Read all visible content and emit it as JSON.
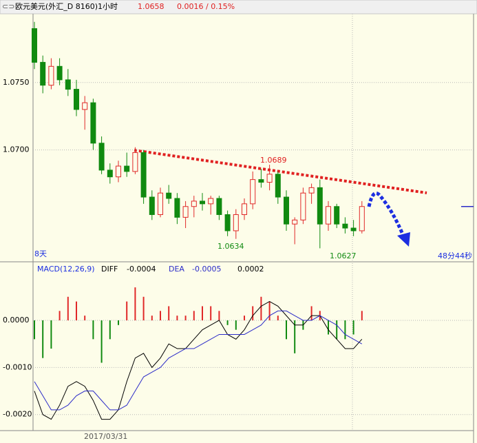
{
  "header": {
    "title": "欧元美元(外汇_D 8160)1小时",
    "price": "1.0658",
    "change": "0.0016 / 0.15%"
  },
  "chart_data": [
    {
      "type": "candlestick",
      "up_color": "#e02828",
      "down_color": "#108a10",
      "open": [
        1.079,
        1.0765,
        1.0748,
        1.0762,
        1.0752,
        1.0745,
        1.073,
        1.0735,
        1.0705,
        1.0685,
        1.068,
        1.0688,
        1.0684,
        1.0698,
        1.0665,
        1.0652,
        1.0668,
        1.0664,
        1.065,
        1.0658,
        1.0662,
        1.066,
        1.0664,
        1.0652,
        1.064,
        1.0652,
        1.066,
        1.0678,
        1.0676,
        1.0682,
        1.0665,
        1.0645,
        1.0648,
        1.0668,
        1.0672,
        1.0645,
        1.0658,
        1.0645,
        1.0642,
        1.064
      ],
      "high": [
        1.0795,
        1.077,
        1.0768,
        1.0768,
        1.076,
        1.0752,
        1.074,
        1.0738,
        1.071,
        1.069,
        1.0692,
        1.0698,
        1.0702,
        1.07,
        1.067,
        1.0672,
        1.0674,
        1.0668,
        1.0662,
        1.0666,
        1.0668,
        1.0666,
        1.0666,
        1.0655,
        1.0656,
        1.0664,
        1.0684,
        1.0686,
        1.0689,
        1.0684,
        1.067,
        1.065,
        1.0672,
        1.0675,
        1.0678,
        1.0662,
        1.066,
        1.065,
        1.0648,
        1.0662
      ],
      "low": [
        1.076,
        1.0742,
        1.0745,
        1.0748,
        1.074,
        1.0725,
        1.0715,
        1.07,
        1.0682,
        1.0675,
        1.0676,
        1.068,
        1.0682,
        1.066,
        1.0648,
        1.065,
        1.066,
        1.0645,
        1.0642,
        1.065,
        1.0655,
        1.0652,
        1.0648,
        1.0636,
        1.0634,
        1.0648,
        1.0656,
        1.0672,
        1.067,
        1.066,
        1.064,
        1.063,
        1.0645,
        1.066,
        1.0627,
        1.064,
        1.0642,
        1.0638,
        1.0636,
        1.0638
      ],
      "close": [
        1.0765,
        1.0748,
        1.0762,
        1.0752,
        1.0745,
        1.073,
        1.0735,
        1.0705,
        1.0685,
        1.068,
        1.0688,
        1.0684,
        1.0698,
        1.0665,
        1.0652,
        1.0668,
        1.0664,
        1.065,
        1.0658,
        1.0662,
        1.066,
        1.0664,
        1.0652,
        1.064,
        1.0652,
        1.066,
        1.0678,
        1.0676,
        1.0682,
        1.0665,
        1.0645,
        1.0648,
        1.0668,
        1.0672,
        1.0645,
        1.0658,
        1.0645,
        1.0642,
        1.064,
        1.0658
      ],
      "ylim": [
        1.0618,
        1.0801
      ],
      "yticks": [
        {
          "value": 1.075,
          "label": "1.0750"
        },
        {
          "value": 1.07,
          "label": "1.0700"
        }
      ],
      "grid": true,
      "annotations": [
        "1.0689",
        "1.0634",
        "1.0627",
        "8天",
        "48分44秒"
      ]
    },
    {
      "type": "macd",
      "title": "MACD(12,26,9)",
      "series": [
        {
          "name": "DIFF",
          "color": "#000000",
          "current": -0.0004,
          "values": [
            -0.0015,
            -0.002,
            -0.0021,
            -0.0018,
            -0.0014,
            -0.0013,
            -0.0014,
            -0.0017,
            -0.0021,
            -0.0021,
            -0.0019,
            -0.0013,
            -0.0008,
            -0.0007,
            -0.001,
            -0.0008,
            -0.0005,
            -0.0006,
            -0.0006,
            -0.0004,
            -0.0002,
            -0.0001,
            0,
            -0.0003,
            -0.0004,
            -0.0002,
            0.0001,
            0.0003,
            0.0004,
            0.0003,
            0.0001,
            -0.0001,
            -0.0001,
            0.0001,
            0.0001,
            -0.0002,
            -0.0004,
            -0.0006,
            -0.0006,
            -0.0004
          ]
        },
        {
          "name": "DEA",
          "color": "#2b2bc8",
          "current": -0.0005,
          "values": [
            -0.0013,
            -0.0016,
            -0.0019,
            -0.0019,
            -0.0018,
            -0.0016,
            -0.0015,
            -0.0015,
            -0.0017,
            -0.0019,
            -0.0019,
            -0.0018,
            -0.0015,
            -0.0012,
            -0.0011,
            -0.001,
            -0.0008,
            -0.0007,
            -0.0006,
            -0.0006,
            -0.0005,
            -0.0004,
            -0.0003,
            -0.0003,
            -0.0003,
            -0.0003,
            -0.0002,
            -0.0001,
            0.0001,
            0.0002,
            0.0002,
            0.0001,
            0,
            0,
            0.0001,
            0,
            -0.0001,
            -0.0003,
            -0.0004,
            -0.0005
          ]
        }
      ],
      "histogram": {
        "up_color": "#e02828",
        "down_color": "#108a10",
        "current": 0.0002,
        "values": [
          -0.0004,
          -0.0008,
          -0.0006,
          0.0002,
          0.0005,
          0.0004,
          0.0001,
          -0.0004,
          -0.0009,
          -0.0004,
          -0.0001,
          0.0004,
          0.0007,
          0.0005,
          0.0001,
          0.0002,
          0.0003,
          0.0001,
          0.0001,
          0.0002,
          0.0003,
          0.0003,
          0.0002,
          -0.0001,
          -0.0002,
          0.0001,
          0.0003,
          0.0005,
          0.0004,
          0.0001,
          -0.0004,
          -0.0007,
          -0.0002,
          0.0003,
          0.0002,
          -0.0003,
          -0.0004,
          -0.0004,
          -0.0003,
          0.0002
        ]
      },
      "ylim": [
        -0.00234,
        0.00095
      ],
      "yticks": [
        {
          "value": 0,
          "label": "0.0000"
        },
        {
          "value": -0.001,
          "label": "-0.0010"
        },
        {
          "value": -0.002,
          "label": "-0.0020"
        }
      ],
      "grid": true,
      "x_label": "2017/03/31"
    }
  ]
}
